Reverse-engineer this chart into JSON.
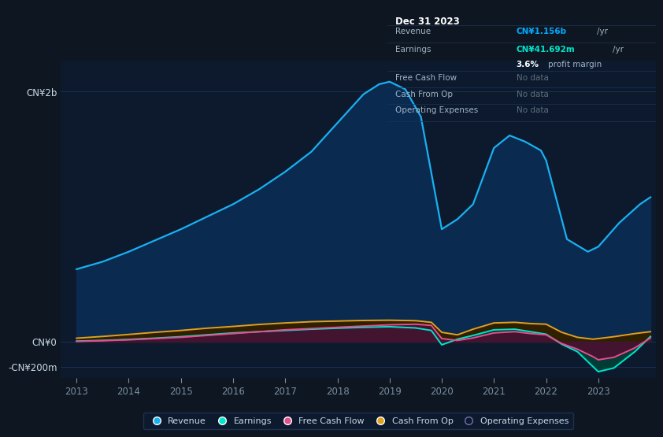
{
  "bg_color": "#0e1621",
  "chart_bg": "#0d1a2e",
  "grid_color": "#1a3050",
  "text_color": "#c8d8e8",
  "dim_text": "#7a8fa0",
  "revenue_color": "#1ab0f0",
  "revenue_fill": "#0a2a50",
  "earnings_color": "#00e5cc",
  "earnings_fill": "#003d35",
  "fcf_color": "#e05090",
  "fcf_fill": "#4a1030",
  "cashop_color": "#e0a020",
  "cashop_fill": "#302000",
  "opex_color": "#7070b0",
  "ylabel_top": "CN¥2b",
  "ylabel_zero": "CN¥0",
  "ylabel_neg": "-CN¥200m",
  "tooltip_title": "Dec 31 2023",
  "tooltip_bg": "#060d16",
  "tooltip_border": "#1e3050",
  "rev_label": "Revenue",
  "rev_value": "CN¥1.156b",
  "rev_unit": "/yr",
  "earn_label": "Earnings",
  "earn_value": "CN¥41.692m",
  "earn_unit": "/yr",
  "margin_pct": "3.6%",
  "margin_text": "profit margin",
  "fcf_label": "Free Cash Flow",
  "cashop_label": "Cash From Op",
  "opex_label": "Operating Expenses",
  "no_data": "No data",
  "legend_labels": [
    "Revenue",
    "Earnings",
    "Free Cash Flow",
    "Cash From Op",
    "Operating Expenses"
  ]
}
